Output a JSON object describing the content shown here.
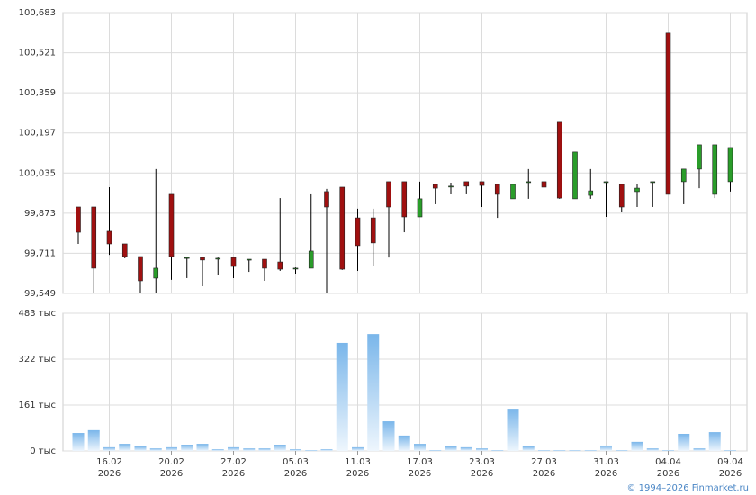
{
  "chart_data": [
    {
      "type": "candlestick",
      "up_color": "#2a9d2a",
      "down_color": "#a01010",
      "open": [
        99.898,
        99.898,
        99.8,
        99.749,
        99.698,
        99.611,
        99.949,
        99.694,
        99.694,
        99.691,
        99.694,
        99.687,
        99.687,
        99.676,
        99.651,
        99.651,
        99.96,
        99.978,
        99.854,
        99.854,
        100.0,
        100.0,
        99.858,
        99.989,
        99.982,
        100.0,
        100.0,
        99.989,
        99.931,
        100.0,
        100.0,
        100.24,
        99.931,
        99.945,
        100.0,
        99.989,
        99.96,
        100.0,
        100.6,
        100.0,
        100.051,
        99.949,
        100.0
      ],
      "high": [
        99.898,
        99.898,
        99.978,
        99.749,
        99.698,
        100.051,
        99.949,
        99.694,
        99.694,
        99.694,
        99.694,
        99.687,
        99.687,
        99.934,
        99.654,
        99.949,
        99.971,
        99.978,
        99.891,
        99.891,
        100.0,
        100.0,
        100.0,
        99.989,
        99.996,
        100.0,
        100.0,
        99.989,
        99.989,
        100.051,
        100.0,
        100.24,
        100.12,
        100.051,
        100.0,
        99.989,
        99.989,
        100.0,
        100.6,
        100.051,
        100.149,
        100.149,
        100.138
      ],
      "low": [
        99.749,
        99.549,
        99.705,
        99.691,
        99.549,
        99.549,
        99.604,
        99.611,
        99.578,
        99.622,
        99.611,
        99.636,
        99.6,
        99.64,
        99.629,
        99.651,
        99.549,
        99.644,
        99.64,
        99.658,
        99.694,
        99.796,
        99.858,
        99.909,
        99.949,
        99.949,
        99.898,
        99.854,
        99.931,
        99.931,
        99.934,
        99.931,
        99.931,
        99.931,
        99.858,
        99.876,
        99.898,
        99.898,
        99.949,
        99.909,
        99.974,
        99.934,
        99.96
      ],
      "close": [
        99.796,
        99.651,
        99.749,
        99.698,
        99.6,
        99.651,
        99.698,
        99.694,
        99.684,
        99.691,
        99.658,
        99.687,
        99.651,
        99.647,
        99.651,
        99.72,
        99.898,
        99.647,
        99.742,
        99.753,
        99.898,
        99.858,
        99.931,
        99.974,
        99.982,
        99.982,
        99.985,
        99.949,
        99.989,
        100.0,
        99.978,
        99.934,
        100.12,
        99.963,
        100.0,
        99.898,
        99.974,
        100.0,
        99.949,
        100.051,
        100.149,
        100.149,
        100.138
      ],
      "ylim": [
        99.549,
        100.683
      ],
      "yticks": [
        {
          "value": 99.549,
          "label": "99,549"
        },
        {
          "value": 99.711,
          "label": "99,711"
        },
        {
          "value": 99.873,
          "label": "99,873"
        },
        {
          "value": 100.035,
          "label": "100,035"
        },
        {
          "value": 100.197,
          "label": "100,197"
        },
        {
          "value": 100.359,
          "label": "100,359"
        },
        {
          "value": 100.521,
          "label": "100,521"
        },
        {
          "value": 100.683,
          "label": "100,683"
        }
      ],
      "grid": true
    },
    {
      "type": "bar",
      "color": "#7ab6ea",
      "categories": [
        null,
        null,
        "16.02",
        null,
        null,
        null,
        "20.02",
        null,
        null,
        null,
        "27.02",
        null,
        null,
        null,
        "05.03",
        null,
        null,
        null,
        "11.03",
        null,
        null,
        null,
        "17.03",
        null,
        null,
        null,
        "23.03",
        null,
        null,
        null,
        "27.03",
        null,
        null,
        null,
        "31.03",
        null,
        null,
        null,
        "04.04",
        null,
        null,
        null,
        "09.04"
      ],
      "category_years": [
        null,
        null,
        "2026",
        null,
        null,
        null,
        "2026",
        null,
        null,
        null,
        "2026",
        null,
        null,
        null,
        "2026",
        null,
        null,
        null,
        "2026",
        null,
        null,
        null,
        "2026",
        null,
        null,
        null,
        "2026",
        null,
        null,
        null,
        "2026",
        null,
        null,
        null,
        "2026",
        null,
        null,
        null,
        "2026",
        null,
        null,
        null,
        "2026"
      ],
      "values": [
        63,
        73,
        13,
        25,
        16,
        9,
        13,
        22,
        25,
        6,
        13,
        9,
        9,
        22,
        6,
        3,
        6,
        379,
        13,
        410,
        104,
        54,
        25,
        3,
        16,
        13,
        9,
        3,
        148,
        16,
        3,
        3,
        3,
        3,
        19,
        3,
        32,
        9,
        3,
        60,
        9,
        66,
        3
      ],
      "ylim": [
        0,
        483
      ],
      "yticks": [
        {
          "value": 0,
          "label": "0 тыс"
        },
        {
          "value": 161,
          "label": "161 тыс"
        },
        {
          "value": 322,
          "label": "322 тыс"
        },
        {
          "value": 483,
          "label": "483 тыс"
        }
      ],
      "grid": true
    }
  ],
  "footer": "© 1994–2026 Finmarket.ru"
}
